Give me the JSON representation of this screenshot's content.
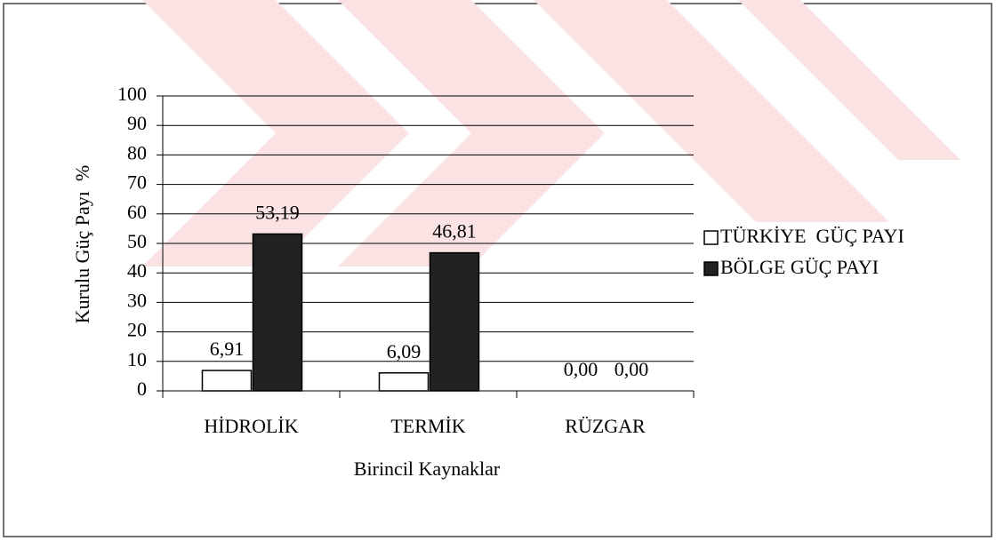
{
  "chart_data": {
    "type": "bar",
    "categories": [
      "HİDROLİK",
      "TERMİK",
      "RÜZGAR"
    ],
    "series": [
      {
        "name": "TÜRKİYE  GÜÇ PAYI",
        "color": "#ffffff",
        "values": [
          6.91,
          6.09,
          0.0
        ],
        "value_labels": [
          "6,91",
          "6,09",
          "0,00"
        ]
      },
      {
        "name": "BÖLGE GÜÇ PAYI",
        "color": "#222222",
        "values": [
          53.19,
          46.81,
          0.0
        ],
        "value_labels": [
          "53,19",
          "46,81",
          "0,00"
        ]
      }
    ],
    "x_label": "Birincil Kaynaklar",
    "y_label": "Kurulu Güç Payı  %",
    "ylim": [
      0,
      100
    ],
    "yticks": [
      0,
      10,
      20,
      30,
      40,
      50,
      60,
      70,
      80,
      90,
      100
    ],
    "grid": true,
    "legend": "right"
  }
}
